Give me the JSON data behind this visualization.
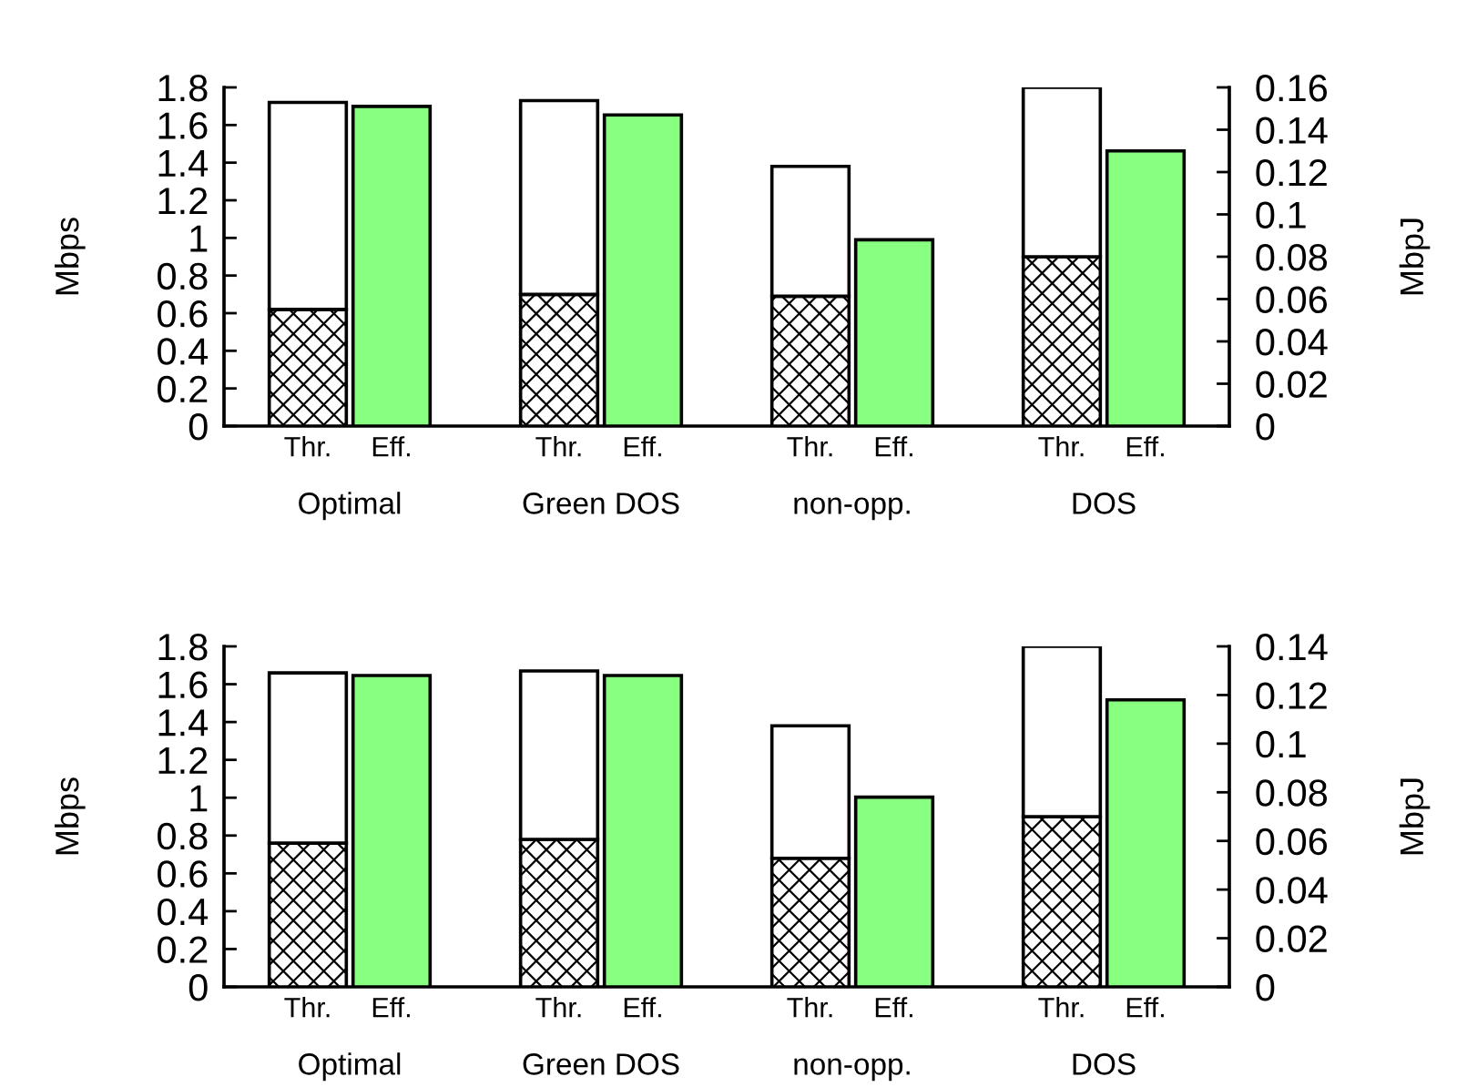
{
  "chart_data": [
    {
      "type": "bar",
      "stacked": true,
      "ylabel": "Mbps",
      "y2label": "MbpJ",
      "categories": [
        "Thr.",
        "Eff.",
        "Thr.",
        "Eff.",
        "Thr.",
        "Eff.",
        "Thr.",
        "Eff."
      ],
      "annotations": [
        "Optimal",
        "Green DOS",
        "non-opp.",
        "DOS"
      ],
      "series": [
        {
          "color": "#000000",
          "values": [
            0.62,
            null,
            0.7,
            null,
            0.69,
            null,
            0.9,
            null
          ]
        },
        {
          "color": "#ffffff",
          "values": [
            1.1,
            null,
            1.03,
            null,
            0.69,
            null,
            0.9,
            null
          ]
        },
        {
          "color": "#88ff80",
          "axis": "y2",
          "values": [
            null,
            0.151,
            null,
            0.147,
            null,
            0.088,
            null,
            0.13
          ]
        }
      ],
      "ylim": [
        0,
        1.8
      ],
      "yticks": [
        0,
        0.2,
        0.4,
        0.6,
        0.8,
        1,
        1.2,
        1.4,
        1.6,
        1.8
      ],
      "y2lim": [
        0,
        0.16
      ],
      "y2ticks": [
        0,
        0.02,
        0.04,
        0.06,
        0.08,
        0.1,
        0.12,
        0.14,
        0.16
      ],
      "grid": false
    },
    {
      "type": "bar",
      "stacked": true,
      "ylabel": "Mbps",
      "y2label": "MbpJ",
      "categories": [
        "Thr.",
        "Eff.",
        "Thr.",
        "Eff.",
        "Thr.",
        "Eff.",
        "Thr.",
        "Eff."
      ],
      "annotations": [
        "Optimal",
        "Green DOS",
        "non-opp.",
        "DOS"
      ],
      "series": [
        {
          "color": "#000000",
          "values": [
            0.76,
            null,
            0.78,
            null,
            0.68,
            null,
            0.9,
            null
          ]
        },
        {
          "color": "#ffffff",
          "values": [
            0.9,
            null,
            0.89,
            null,
            0.7,
            null,
            0.9,
            null
          ]
        },
        {
          "color": "#88ff80",
          "axis": "y2",
          "values": [
            null,
            0.128,
            null,
            0.128,
            null,
            0.078,
            null,
            0.118
          ]
        }
      ],
      "ylim": [
        0,
        1.8
      ],
      "yticks": [
        0,
        0.2,
        0.4,
        0.6,
        0.8,
        1,
        1.2,
        1.4,
        1.6,
        1.8
      ],
      "y2lim": [
        0,
        0.14
      ],
      "y2ticks": [
        0,
        0.02,
        0.04,
        0.06,
        0.08,
        0.1,
        0.12,
        0.14
      ],
      "grid": false
    }
  ]
}
